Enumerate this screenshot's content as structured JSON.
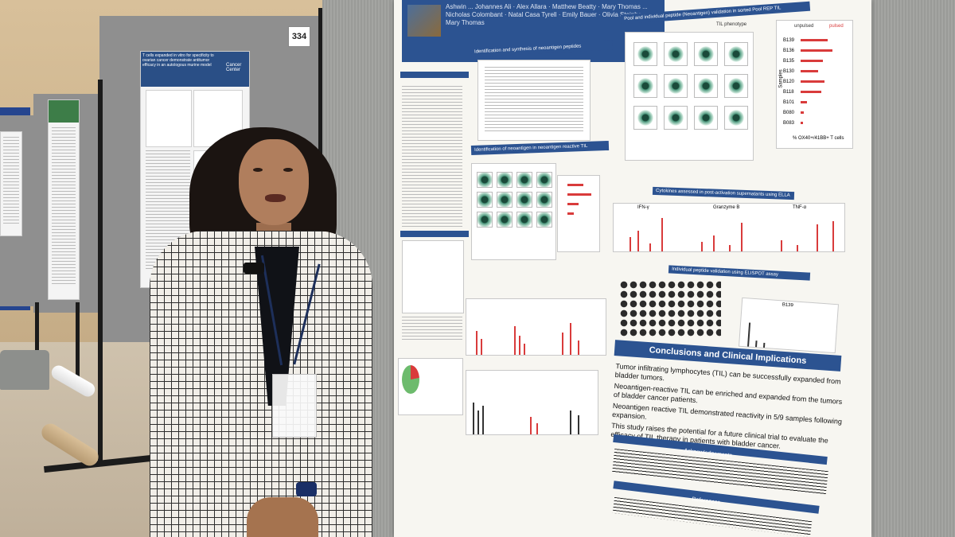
{
  "board_number": "334",
  "left_poster": {
    "header_right": "Cancer Center",
    "title_lines": "T cells expanded in vitro for specificity to ovarian cancer demonstrate antitumor efficacy in an autologous murine model"
  },
  "main_poster": {
    "authors_line": "Ashwin ... Johannes Ali · Alex Allara · Matthew Beatty · Mary Thomas ... Nicholas Colombant · Natal Casa Tyrell · Emily Bauer · Olivia Steinberg · Mary Thomas",
    "panel_titles": {
      "til_phenotype": "TIL phenotype",
      "pool_validation": "Pool and individual peptide (Neoantigen) validation in sorted Pool REP TIL",
      "cytokines": "Cytokines assessed in post-activation supernatants using ELLA",
      "elispot": "Individual peptide validation using ELISPOT assay",
      "identification": "Identification and synthesis of neoantigen peptides",
      "gamma_screen": "Identification of neoantigen in neoantigen reactive TIL"
    },
    "legend": {
      "unpulsed": "unpulsed",
      "pulsed": "pulsed"
    },
    "bar_samples": [
      "B139",
      "B136",
      "B135",
      "B130",
      "B120",
      "B118",
      "B101",
      "B080",
      "B083"
    ],
    "bar_axis_label": "% OX40+/41BB+ T cells",
    "samples_label": "Samples",
    "elispot_sample": "B139",
    "cytokine_labels": [
      "IFN-γ",
      "Granzyme B",
      "TNF-α"
    ],
    "conclusions_title": "Conclusions and Clinical Implications",
    "conclusions": [
      "Tumor infiltrating lymphocytes (TIL) can be successfully expanded from bladder tumors.",
      "Neoantigen-reactive TIL can be enriched and expanded from the tumors of bladder cancer patients.",
      "Neoantigen reactive TIL demonstrated reactivity in 5/9 samples following expansion.",
      "This study raises the potential for a future clinical trial to evaluate the efficacy of TIL therapy in patients with bladder cancer."
    ],
    "acknowledgements_title": "Acknowledgements",
    "references_title": "References"
  },
  "colors": {
    "poster_blue": "#2c5391",
    "bar_red": "#d93b3b",
    "jacket_check": "#2c2c2c"
  }
}
